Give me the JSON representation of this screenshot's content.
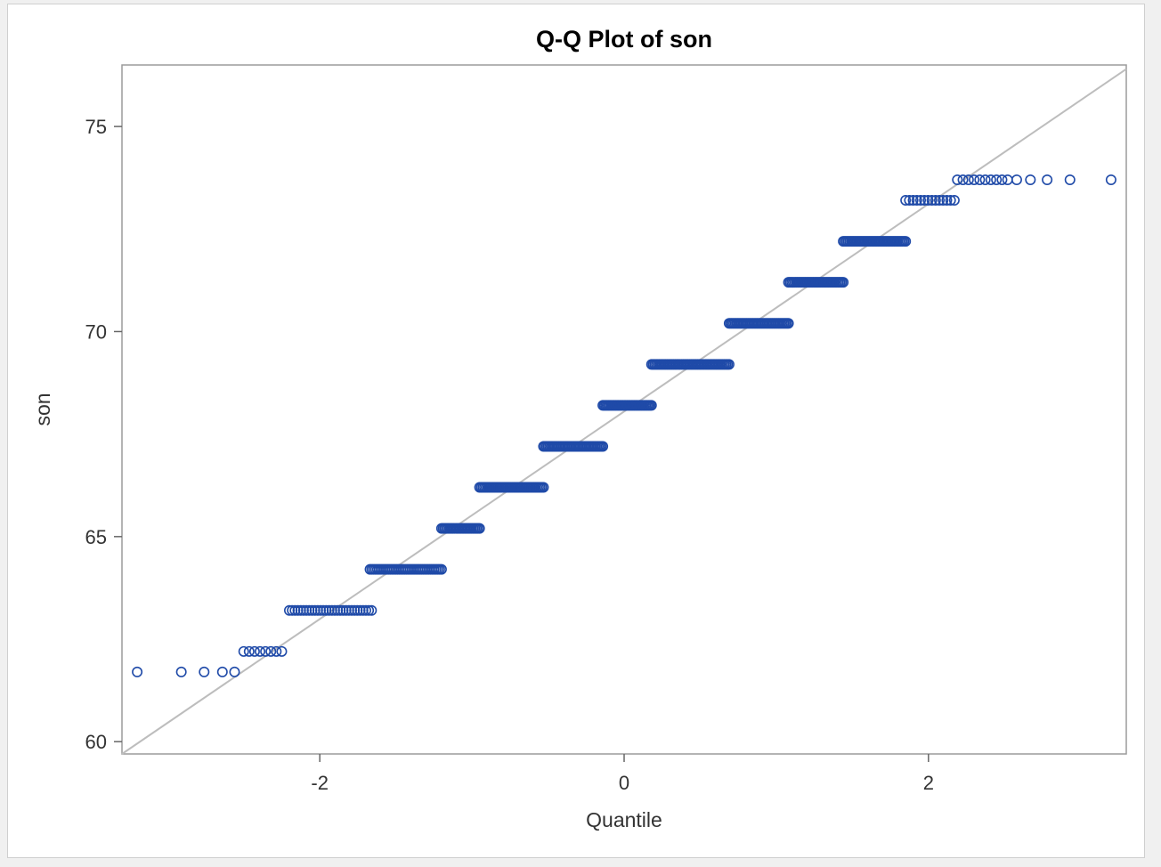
{
  "chart_data": {
    "type": "scatter",
    "title": "Q-Q Plot of son",
    "xlabel": "Quantile",
    "ylabel": "son",
    "xlim": [
      -3.3,
      3.3
    ],
    "ylim": [
      59.7,
      76.5
    ],
    "x_ticks": [
      -2,
      0,
      2
    ],
    "x_tick_labels": [
      "-2",
      "0",
      "2"
    ],
    "y_ticks": [
      60,
      65,
      70,
      75
    ],
    "y_tick_labels": [
      "60",
      "65",
      "70",
      "75"
    ],
    "grid": false,
    "legend": "none",
    "marker": "open-circle",
    "marker_color": "#1f4aa8",
    "reference_line": {
      "color": "#bdbdbd",
      "from": {
        "x": -3.3,
        "y": 59.7
      },
      "to": {
        "x": 3.3,
        "y": 76.4
      }
    },
    "series": [
      {
        "points": [
          {
            "x": -3.2,
            "y": 61.7
          },
          {
            "x": -2.91,
            "y": 61.7
          },
          {
            "x": -2.76,
            "y": 61.7
          },
          {
            "x": -2.64,
            "y": 61.7
          },
          {
            "x": -2.56,
            "y": 61.7
          }
        ]
      },
      {
        "runs": [
          {
            "y": 62.2,
            "x_start": -2.5,
            "x_end": -2.25,
            "count": 8
          },
          {
            "y": 63.2,
            "x_start": -2.2,
            "x_end": -1.66,
            "count": 30
          },
          {
            "y": 64.2,
            "x_start": -1.67,
            "x_end": -1.2,
            "count": 40
          },
          {
            "y": 65.2,
            "x_start": -1.2,
            "x_end": -0.95,
            "count": 25
          },
          {
            "y": 66.2,
            "x_start": -0.95,
            "x_end": -0.53,
            "count": 40
          },
          {
            "y": 67.2,
            "x_start": -0.53,
            "x_end": -0.14,
            "count": 40
          },
          {
            "y": 68.2,
            "x_start": -0.14,
            "x_end": 0.18,
            "count": 35
          },
          {
            "y": 69.2,
            "x_start": 0.18,
            "x_end": 0.69,
            "count": 50
          },
          {
            "y": 70.2,
            "x_start": 0.69,
            "x_end": 1.08,
            "count": 40
          },
          {
            "y": 71.2,
            "x_start": 1.08,
            "x_end": 1.44,
            "count": 35
          },
          {
            "y": 72.2,
            "x_start": 1.44,
            "x_end": 1.85,
            "count": 40
          },
          {
            "y": 73.2,
            "x_start": 1.85,
            "x_end": 2.17,
            "count": 14
          },
          {
            "y": 73.7,
            "x_start": 2.19,
            "x_end": 2.52,
            "count": 10
          }
        ]
      },
      {
        "points": [
          {
            "x": 2.58,
            "y": 73.7
          },
          {
            "x": 2.67,
            "y": 73.7
          },
          {
            "x": 2.78,
            "y": 73.7
          },
          {
            "x": 2.93,
            "y": 73.7
          },
          {
            "x": 3.2,
            "y": 73.7
          }
        ]
      }
    ]
  }
}
